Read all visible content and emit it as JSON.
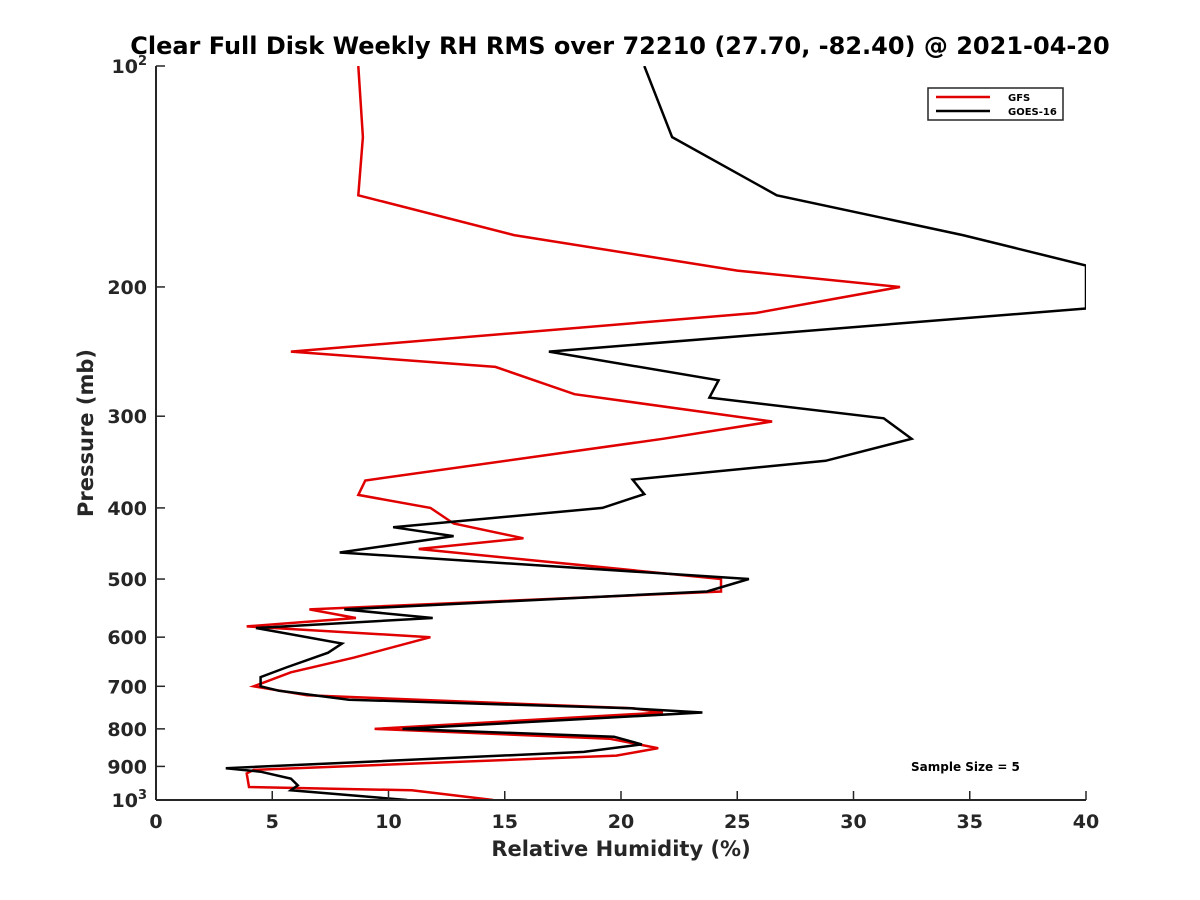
{
  "chart_data": {
    "type": "line",
    "title": "Clear Full Disk Weekly RH RMS over 72210 (27.70, -82.40) @ 2021-04-20",
    "xlabel": "Relative Humidity (%)",
    "ylabel": "Pressure (mb)",
    "xlim": [
      0,
      40
    ],
    "ylim": [
      100,
      1000
    ],
    "yscale": "log",
    "y_reversed": true,
    "x_ticks": [
      0,
      5,
      10,
      15,
      20,
      25,
      30,
      35,
      40
    ],
    "y_ticks": [
      {
        "value": 100,
        "base": "10",
        "exp": "2"
      },
      {
        "value": 200,
        "label": "200"
      },
      {
        "value": 300,
        "label": "300"
      },
      {
        "value": 400,
        "label": "400"
      },
      {
        "value": 500,
        "label": "500"
      },
      {
        "value": 600,
        "label": "600"
      },
      {
        "value": 700,
        "label": "700"
      },
      {
        "value": 800,
        "label": "800"
      },
      {
        "value": 900,
        "label": "900"
      },
      {
        "value": 1000,
        "base": "10",
        "exp": "3"
      }
    ],
    "legend_position": "top-right",
    "grid": false,
    "series": [
      {
        "name": "GFS",
        "color": "#e00000",
        "points": [
          [
            8.7,
            100
          ],
          [
            8.9,
            125
          ],
          [
            8.7,
            150
          ],
          [
            15.4,
            170
          ],
          [
            25.0,
            190
          ],
          [
            32.0,
            200
          ],
          [
            25.8,
            217
          ],
          [
            5.8,
            245
          ],
          [
            14.6,
            257
          ],
          [
            18.0,
            280
          ],
          [
            26.5,
            305
          ],
          [
            21.8,
            322
          ],
          [
            9.0,
            367
          ],
          [
            8.7,
            384
          ],
          [
            11.8,
            400
          ],
          [
            12.8,
            420
          ],
          [
            15.8,
            440
          ],
          [
            11.3,
            455
          ],
          [
            24.3,
            500
          ],
          [
            24.3,
            520
          ],
          [
            6.6,
            550
          ],
          [
            8.6,
            565
          ],
          [
            3.9,
            580
          ],
          [
            11.8,
            600
          ],
          [
            8.5,
            640
          ],
          [
            5.8,
            670
          ],
          [
            4.2,
            700
          ],
          [
            6.5,
            720
          ],
          [
            20.5,
            750
          ],
          [
            21.8,
            760
          ],
          [
            9.4,
            800
          ],
          [
            19.5,
            825
          ],
          [
            21.6,
            850
          ],
          [
            19.8,
            870
          ],
          [
            4.2,
            910
          ],
          [
            3.9,
            920
          ],
          [
            4.0,
            960
          ],
          [
            11.0,
            970
          ],
          [
            14.5,
            1000
          ]
        ]
      },
      {
        "name": "GOES-16",
        "color": "#000000",
        "points": [
          [
            21.0,
            100
          ],
          [
            22.2,
            125
          ],
          [
            26.7,
            150
          ],
          [
            34.7,
            170
          ],
          [
            40.0,
            187
          ],
          [
            40.0,
            214
          ],
          [
            16.9,
            245
          ],
          [
            24.2,
            268
          ],
          [
            23.8,
            283
          ],
          [
            31.3,
            302
          ],
          [
            32.5,
            322
          ],
          [
            28.8,
            345
          ],
          [
            20.5,
            366
          ],
          [
            21.0,
            383
          ],
          [
            19.2,
            400
          ],
          [
            10.2,
            425
          ],
          [
            12.8,
            437
          ],
          [
            7.9,
            460
          ],
          [
            25.5,
            500
          ],
          [
            23.7,
            520
          ],
          [
            8.1,
            550
          ],
          [
            11.9,
            565
          ],
          [
            4.3,
            583
          ],
          [
            8.0,
            612
          ],
          [
            7.4,
            630
          ],
          [
            5.6,
            660
          ],
          [
            4.5,
            680
          ],
          [
            4.5,
            700
          ],
          [
            5.3,
            710
          ],
          [
            8.3,
            730
          ],
          [
            20.4,
            750
          ],
          [
            23.5,
            760
          ],
          [
            10.6,
            800
          ],
          [
            19.7,
            820
          ],
          [
            20.9,
            840
          ],
          [
            18.4,
            860
          ],
          [
            3.0,
            905
          ],
          [
            4.5,
            915
          ],
          [
            5.8,
            935
          ],
          [
            6.1,
            955
          ],
          [
            5.8,
            970
          ],
          [
            10.8,
            1000
          ]
        ]
      }
    ],
    "annotation": "Sample Size = 5"
  }
}
